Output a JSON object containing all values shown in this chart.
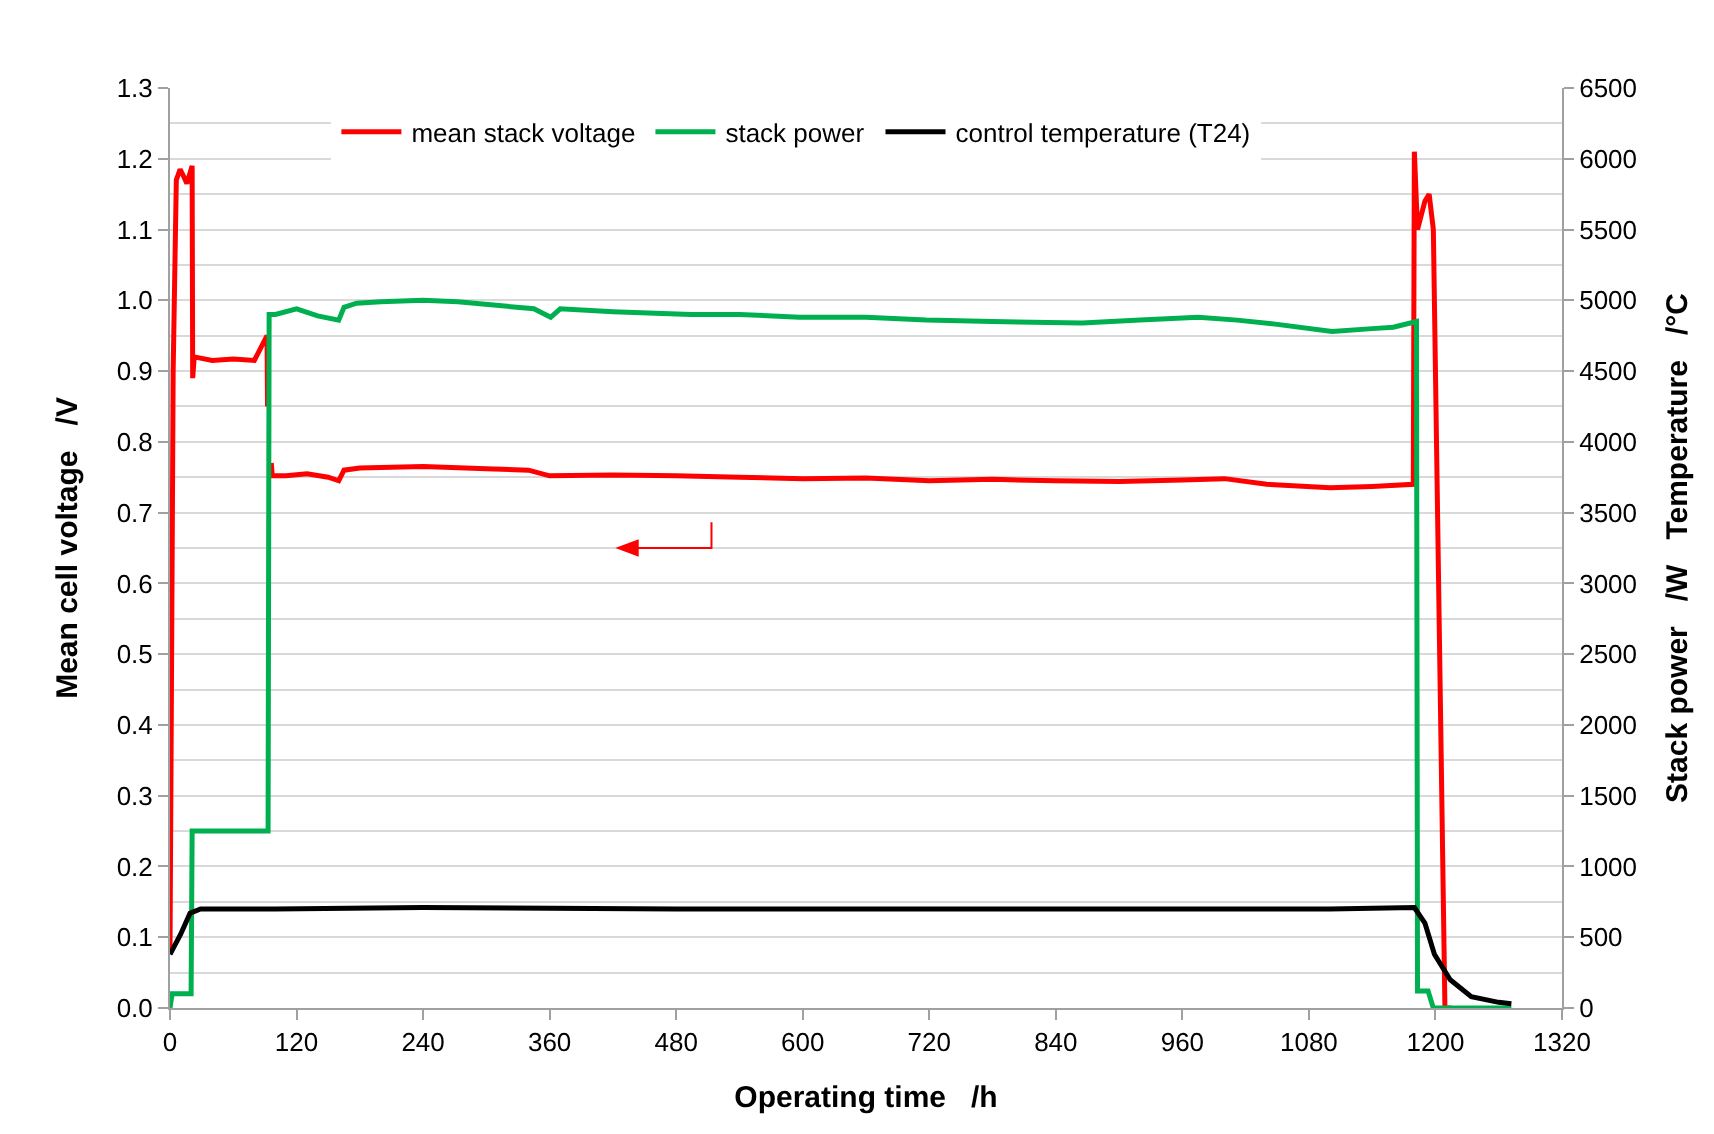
{
  "chart_data": {
    "type": "line",
    "xlabel": "Operating time   /h",
    "ylabel": "Mean cell voltage   /V",
    "y2label": "Stack power   /W   Temperature   /°C",
    "xlim": [
      0,
      1320
    ],
    "xticks": [
      0,
      120,
      240,
      360,
      480,
      600,
      720,
      840,
      960,
      1080,
      1200,
      1320
    ],
    "ylim": [
      0,
      1.3
    ],
    "yticks": [
      {
        "value": 0,
        "label": "0.0"
      },
      {
        "value": 0.1,
        "label": "0.1"
      },
      {
        "value": 0.2,
        "label": "0.2"
      },
      {
        "value": 0.3,
        "label": "0.3"
      },
      {
        "value": 0.4,
        "label": "0.4"
      },
      {
        "value": 0.5,
        "label": "0.5"
      },
      {
        "value": 0.6,
        "label": "0.6"
      },
      {
        "value": 0.7,
        "label": "0.7"
      },
      {
        "value": 0.8,
        "label": "0.8"
      },
      {
        "value": 0.9,
        "label": "0.9"
      },
      {
        "value": 1,
        "label": "1.0"
      },
      {
        "value": 1.1,
        "label": "1.1"
      },
      {
        "value": 1.2,
        "label": "1.2"
      },
      {
        "value": 1.3,
        "label": "1.3"
      }
    ],
    "y2lim": [
      0,
      6500
    ],
    "y2ticks": [
      0,
      500,
      1000,
      1500,
      2000,
      2500,
      3000,
      3500,
      4000,
      4500,
      5000,
      5500,
      6000,
      6500
    ],
    "grid": "y",
    "legend": "top",
    "marker": "none",
    "line_style": "solid",
    "series": [
      {
        "name": "mean stack voltage",
        "color": "#ff0000",
        "x": [
          0,
          3,
          6,
          9.6,
          13,
          16,
          19,
          21,
          21.5,
          23,
          40,
          60,
          80,
          92,
          92.5,
          94,
          96,
          97,
          110,
          130,
          150,
          160,
          165,
          180,
          240,
          300,
          340,
          360,
          420,
          480,
          540,
          600,
          660,
          720,
          780,
          840,
          900,
          960,
          1000,
          1040,
          1100,
          1140,
          1179,
          1180,
          1183,
          1190,
          1194,
          1198,
          1205,
          1209,
          1215
        ],
        "values": [
          0.077,
          0.9,
          1.17,
          1.185,
          1.175,
          1.165,
          1.18,
          1.19,
          0.89,
          0.92,
          0.915,
          0.917,
          0.915,
          0.95,
          0.85,
          null,
          0.77,
          0.752,
          0.752,
          0.755,
          0.75,
          0.745,
          0.76,
          0.763,
          0.765,
          0.762,
          0.76,
          0.752,
          0.753,
          0.752,
          0.75,
          0.748,
          0.749,
          0.745,
          0.747,
          0.745,
          0.744,
          0.746,
          0.748,
          0.74,
          0.735,
          0.737,
          0.74,
          1.21,
          1.1,
          1.14,
          1.15,
          1.1,
          0.4,
          0,
          0
        ]
      },
      {
        "name": "stack power",
        "color": "#00b050",
        "axis": "y2",
        "x": [
          0,
          2,
          20,
          21,
          60,
          93,
          94,
          100,
          120,
          140,
          160,
          165,
          177,
          200,
          240,
          273,
          345,
          361,
          370,
          420,
          494,
          540,
          597,
          660,
          717,
          780,
          865,
          920,
          975,
          1012,
          1050,
          1102,
          1140,
          1160,
          1182,
          1183,
          1193,
          1198,
          1272
        ],
        "values": [
          0,
          100,
          100,
          1250,
          1250,
          1250,
          4900,
          4900,
          4940,
          4890,
          4860,
          4950,
          4980,
          4990,
          5000,
          4990,
          4940,
          4880,
          4940,
          4920,
          4900,
          4900,
          4880,
          4880,
          4860,
          4850,
          4840,
          4860,
          4880,
          4860,
          4830,
          4780,
          4800,
          4810,
          4850,
          120,
          120,
          0,
          0
        ]
      },
      {
        "name": "control temperature (T24)",
        "color": "#000000",
        "axis": "y2",
        "x": [
          0,
          10,
          19,
          29,
          100,
          240,
          480,
          720,
          960,
          1100,
          1180,
          1190,
          1199,
          1214,
          1234,
          1260,
          1272
        ],
        "values": [
          380,
          520,
          670,
          700,
          700,
          710,
          700,
          700,
          700,
          700,
          710,
          600,
          380,
          200,
          80,
          40,
          30
        ]
      }
    ]
  }
}
